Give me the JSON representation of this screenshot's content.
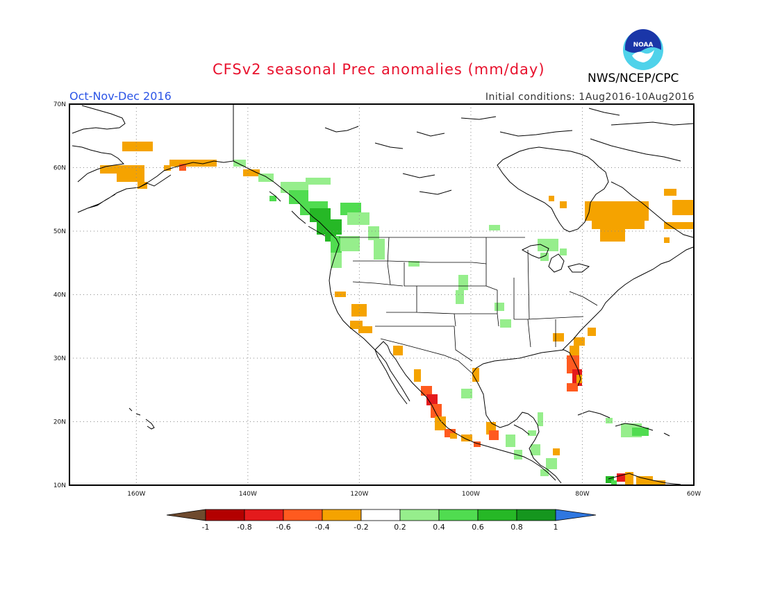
{
  "header": {
    "title": "CFSv2 seasonal Prec anomalies (mm/day)",
    "season": "Oct-Nov-Dec 2016",
    "initial_conditions": "Initial conditions: 1Aug2016-10Aug2016",
    "agency": "NWS/NCEP/CPC",
    "logo_text": "NOAA"
  },
  "axes": {
    "lat_ticks": [
      "70N",
      "60N",
      "50N",
      "40N",
      "30N",
      "20N",
      "10N"
    ],
    "lon_ticks": [
      "160W",
      "140W",
      "120W",
      "100W",
      "80W",
      "60W"
    ],
    "lat_range": [
      10,
      70
    ],
    "lon_range": [
      -172,
      -60
    ],
    "grid": "dotted"
  },
  "colorbar": {
    "labels": [
      "-1",
      "-0.8",
      "-0.6",
      "-0.4",
      "-0.2",
      "0.2",
      "0.4",
      "0.6",
      "0.8",
      "1"
    ],
    "colors": [
      "#6e4a2e",
      "#b30000",
      "#e41a1c",
      "#ff5a1f",
      "#f5a300",
      "#ffffff",
      "#96ee8c",
      "#50dc50",
      "#26b826",
      "#15961e",
      "#2f77e0"
    ]
  },
  "anomaly_colors": {
    "dry_1": "#f5a300",
    "dry_2": "#ff5a1f",
    "dry_3": "#e41a1c",
    "wet_1": "#96ee8c",
    "wet_2": "#50dc50",
    "wet_3": "#26b826"
  }
}
